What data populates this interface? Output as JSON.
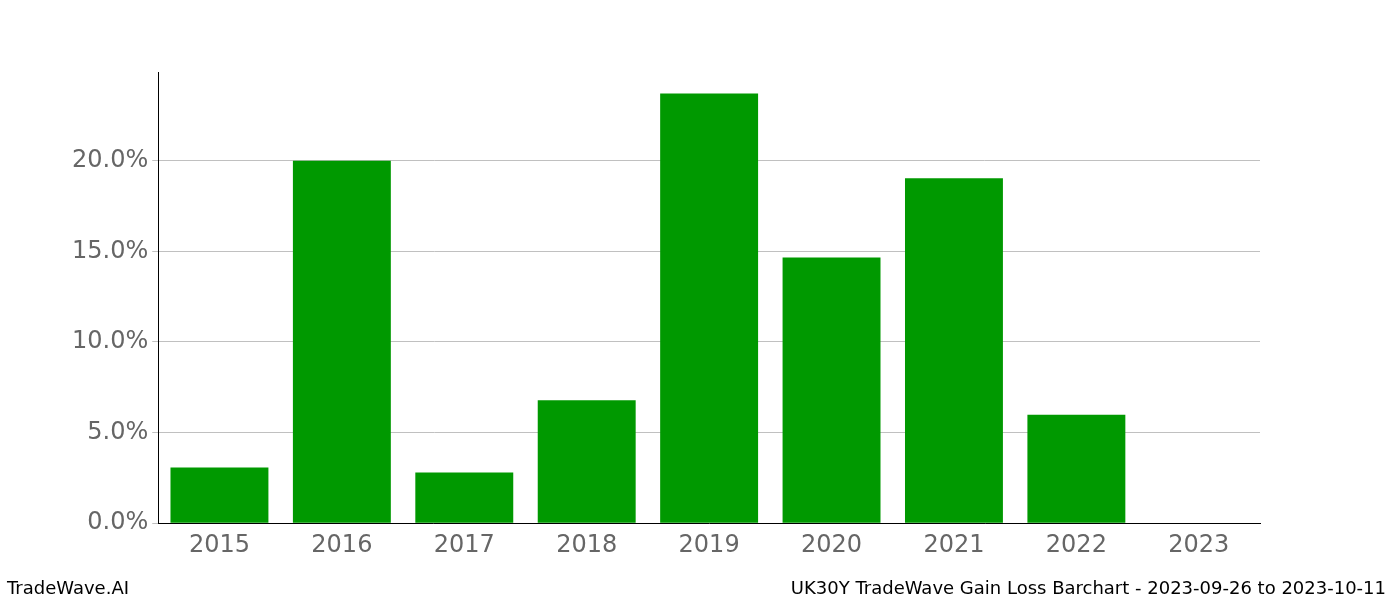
{
  "chart_data": {
    "type": "bar",
    "title": "UK30Y TradeWave Gain Loss Barchart - 2023-09-26 to 2023-10-11",
    "annotations": [
      "TradeWave.AI"
    ],
    "categories": [
      "2015",
      "2016",
      "2017",
      "2018",
      "2019",
      "2020",
      "2021",
      "2022",
      "2023"
    ],
    "values": [
      3.07,
      20.0,
      2.8,
      6.79,
      23.72,
      14.66,
      19.03,
      5.98,
      0
    ],
    "color": "#009900",
    "ylim": [
      0,
      24.9
    ],
    "yticks": [
      {
        "value": 0,
        "label": "0.0%"
      },
      {
        "value": 5,
        "label": "5.0%"
      },
      {
        "value": 10,
        "label": "10.0%"
      },
      {
        "value": 15,
        "label": "15.0%"
      },
      {
        "value": 20,
        "label": "20.0%"
      }
    ],
    "grid": true
  }
}
